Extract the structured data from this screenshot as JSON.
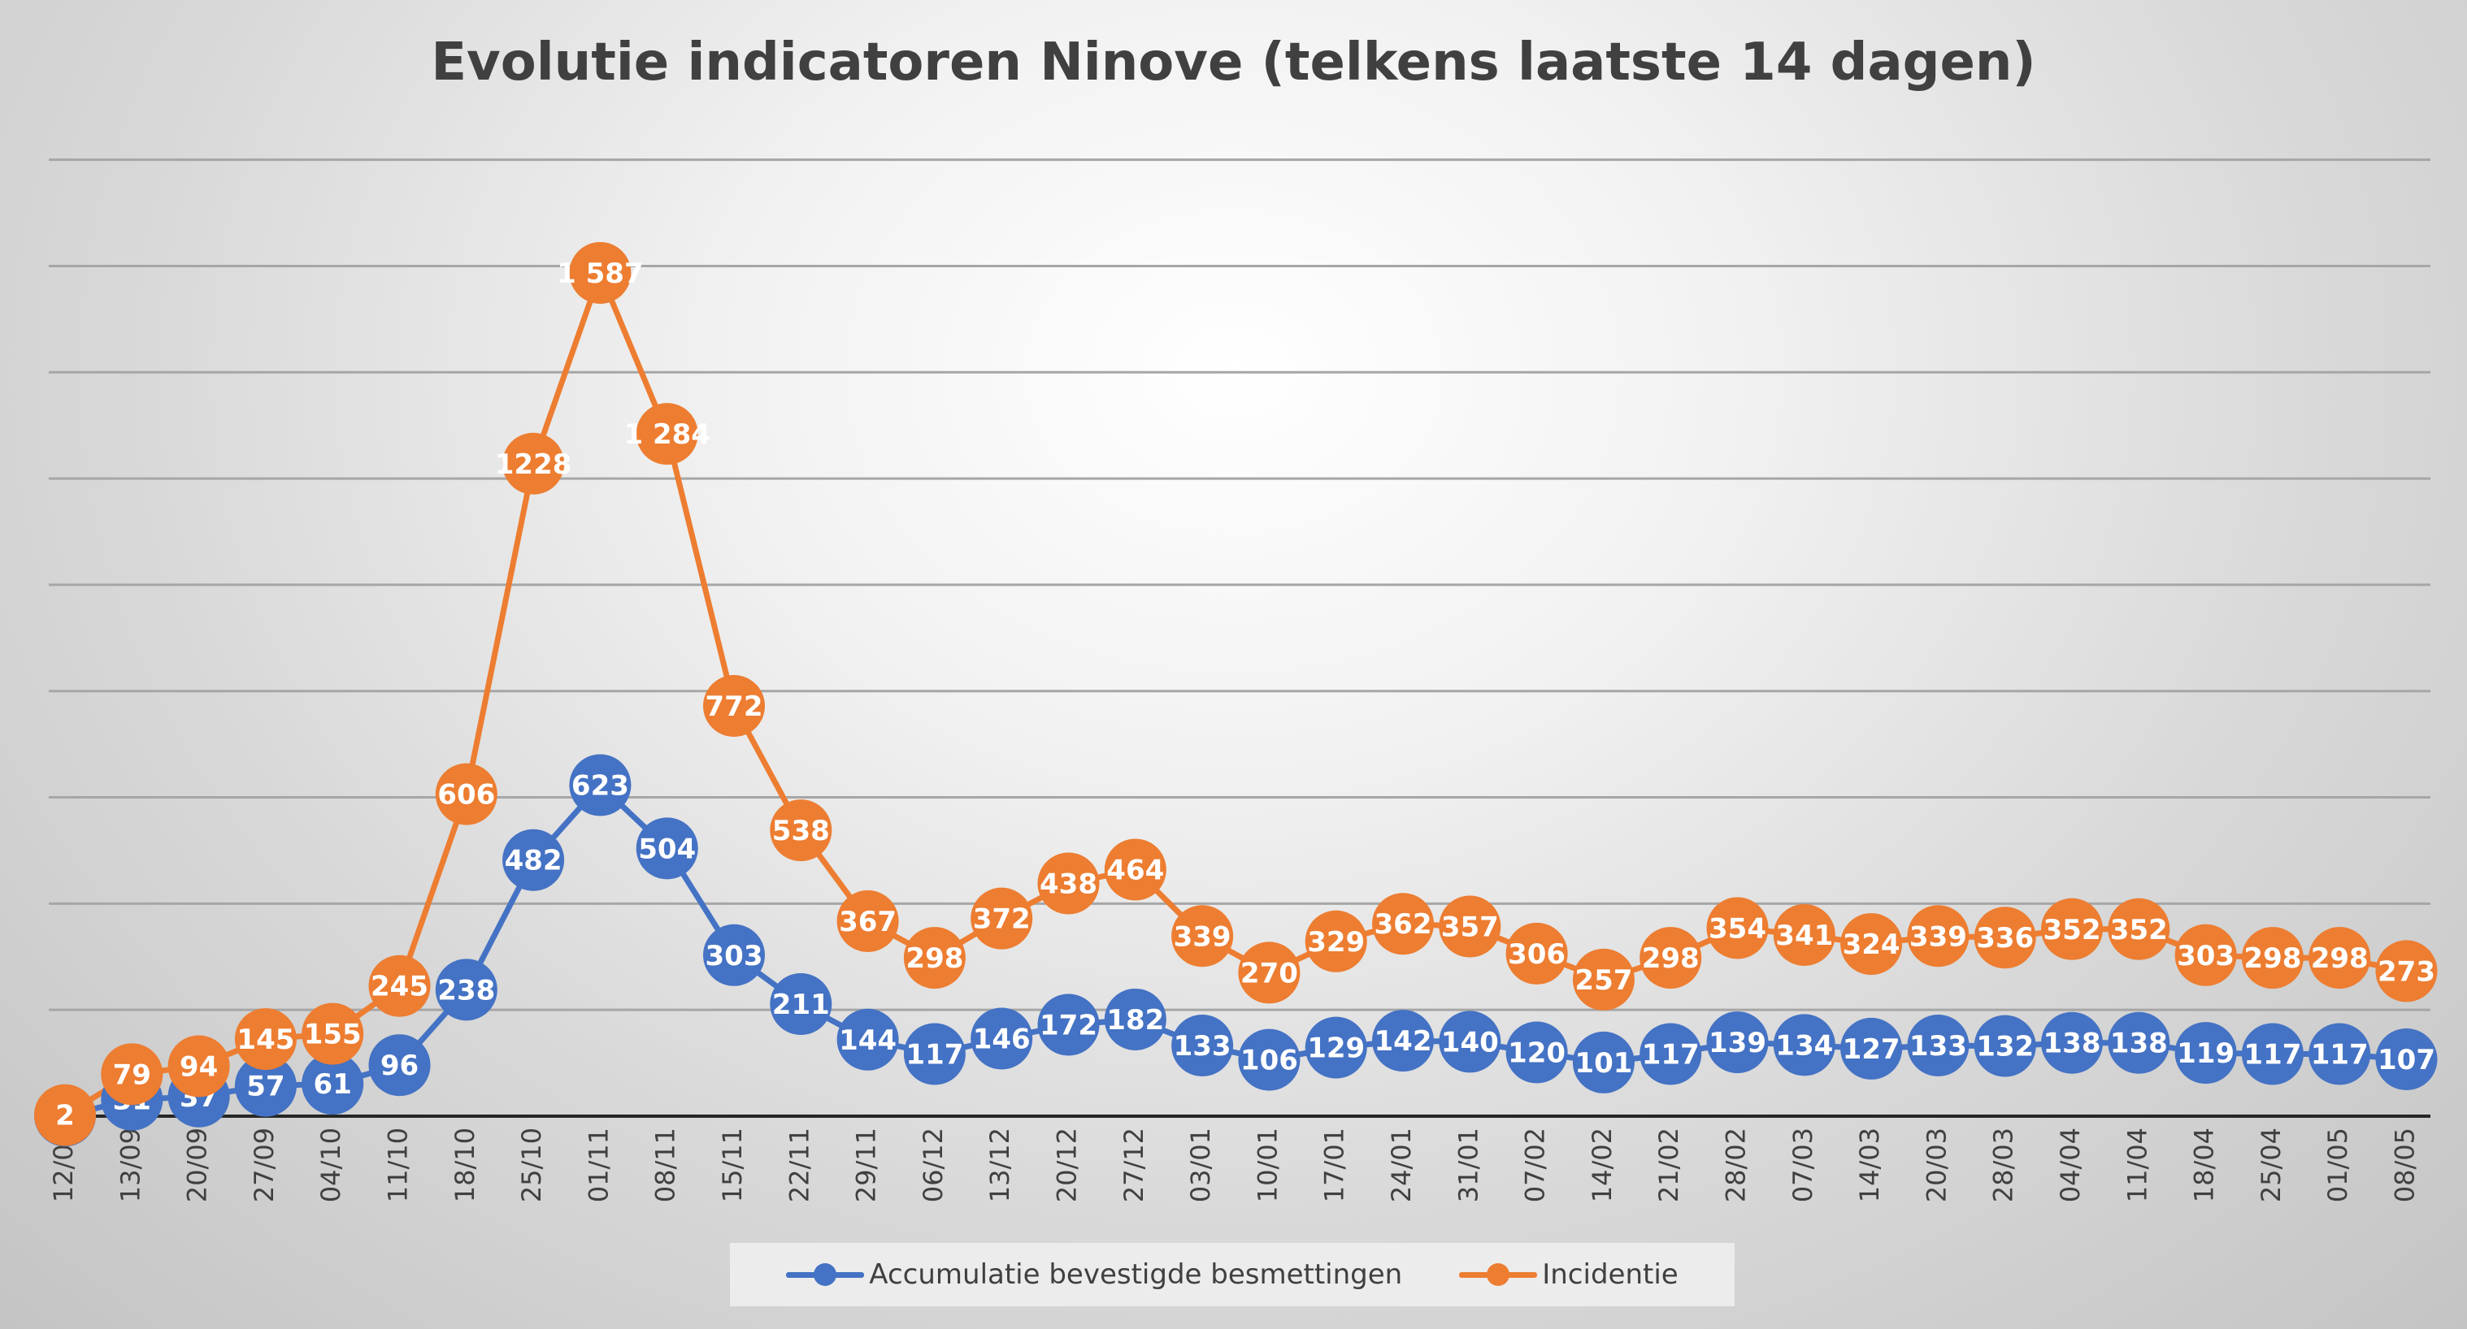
{
  "chart_data": {
    "type": "line",
    "title": "Evolutie indicatoren Ninove (telkens laatste 14 dagen)",
    "xlabel": "",
    "ylabel": "",
    "categories": [
      "12/07",
      "13/09",
      "20/09",
      "27/09",
      "04/10",
      "11/10",
      "18/10",
      "25/10",
      "01/11",
      "08/11",
      "15/11",
      "22/11",
      "29/11",
      "06/12",
      "13/12",
      "20/12",
      "27/12",
      "03/01",
      "10/01",
      "17/01",
      "24/01",
      "31/01",
      "07/02",
      "14/02",
      "21/02",
      "28/02",
      "07/03",
      "14/03",
      "20/03",
      "28/03",
      "04/04",
      "11/04",
      "18/04",
      "25/04",
      "01/05",
      "08/05"
    ],
    "series": [
      {
        "name": "Accumulatie bevestigde besmettingen",
        "color": "#4472c4",
        "values": [
          1,
          31,
          37,
          57,
          61,
          96,
          238,
          482,
          623,
          504,
          303,
          211,
          144,
          117,
          146,
          172,
          182,
          133,
          106,
          129,
          142,
          140,
          120,
          101,
          117,
          139,
          134,
          127,
          133,
          132,
          138,
          138,
          119,
          117,
          117,
          107
        ],
        "labels": [
          "1",
          "31",
          "37",
          "57",
          "61",
          "96",
          "238",
          "482",
          "623",
          "504",
          "303",
          "211",
          "144",
          "117",
          "146",
          "172",
          "182",
          "133",
          "106",
          "129",
          "142",
          "140",
          "120",
          "101",
          "117",
          "139",
          "134",
          "127",
          "133",
          "132",
          "138",
          "138",
          "119",
          "117",
          "117",
          "107"
        ]
      },
      {
        "name": "Incidentie",
        "color": "#ed7d31",
        "values": [
          2,
          79,
          94,
          145,
          155,
          245,
          606,
          1228,
          1587,
          1284,
          772,
          538,
          367,
          298,
          372,
          438,
          464,
          339,
          270,
          329,
          362,
          357,
          306,
          257,
          298,
          354,
          341,
          324,
          339,
          336,
          352,
          352,
          303,
          298,
          298,
          273
        ],
        "labels": [
          "2",
          "79",
          "94",
          "145",
          "155",
          "245",
          "606",
          "1228",
          "1 587",
          "1 284",
          "772",
          "538",
          "367",
          "298",
          "372",
          "438",
          "464",
          "339",
          "270",
          "329",
          "362",
          "357",
          "306",
          "257",
          "298",
          "354",
          "341",
          "324",
          "339",
          "336",
          "352",
          "352",
          "303",
          "298",
          "298",
          "273"
        ]
      }
    ],
    "ylim": [
      0,
      1800
    ],
    "gridlines": [
      200,
      400,
      600,
      800,
      1000,
      1200,
      1400,
      1600,
      1800
    ],
    "grid": true,
    "legend": "bottom"
  }
}
